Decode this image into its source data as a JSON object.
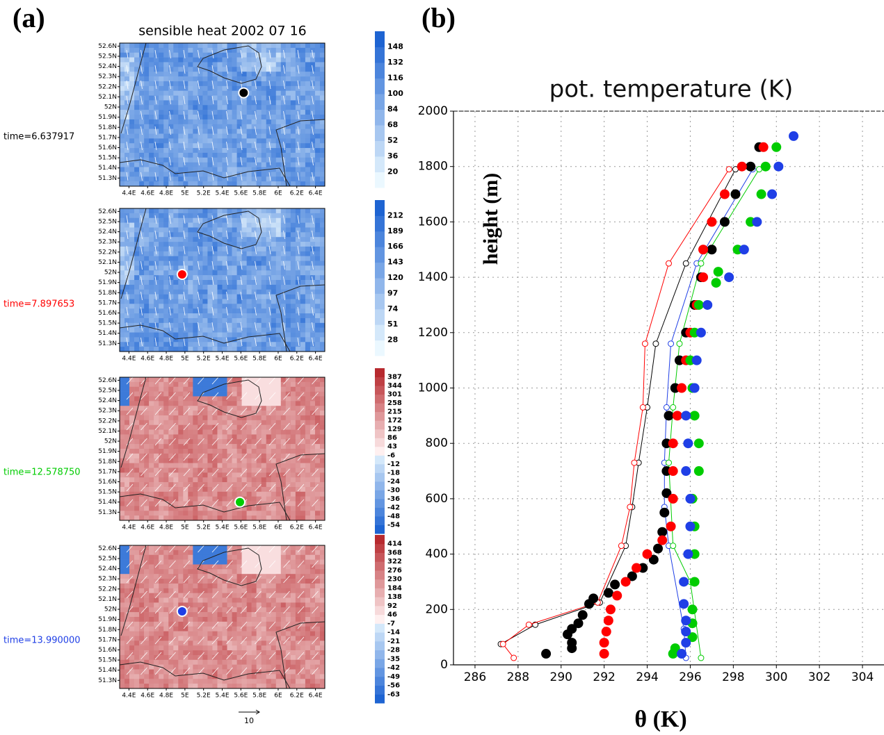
{
  "maps": {
    "panel_label": "(a)",
    "title": "sensible heat 2002 07   16",
    "lat_ticks": [
      {
        "value": 52.6,
        "label": "52.6N"
      },
      {
        "value": 52.5,
        "label": "52.5N"
      },
      {
        "value": 52.4,
        "label": "52.4N"
      },
      {
        "value": 52.3,
        "label": "52.3N"
      },
      {
        "value": 52.2,
        "label": "52.2N"
      },
      {
        "value": 52.1,
        "label": "52.1N"
      },
      {
        "value": 52.0,
        "label": "52N"
      },
      {
        "value": 51.9,
        "label": "51.9N"
      },
      {
        "value": 51.8,
        "label": "51.8N"
      },
      {
        "value": 51.7,
        "label": "51.7N"
      },
      {
        "value": 51.6,
        "label": "51.6N"
      },
      {
        "value": 51.5,
        "label": "51.5N"
      },
      {
        "value": 51.4,
        "label": "51.4N"
      },
      {
        "value": 51.3,
        "label": "51.3N"
      }
    ],
    "lon_ticks": [
      {
        "value": 4.4,
        "label": "4.4E"
      },
      {
        "value": 4.6,
        "label": "4.6E"
      },
      {
        "value": 4.8,
        "label": "4.8E"
      },
      {
        "value": 5.0,
        "label": "5E"
      },
      {
        "value": 5.2,
        "label": "5.2E"
      },
      {
        "value": 5.4,
        "label": "5.4E"
      },
      {
        "value": 5.6,
        "label": "5.6E"
      },
      {
        "value": 5.8,
        "label": "5.8E"
      },
      {
        "value": 6.0,
        "label": "6E"
      },
      {
        "value": 6.2,
        "label": "6.2E"
      },
      {
        "value": 6.4,
        "label": "6.4E"
      }
    ],
    "vector_scale": "10",
    "panels": [
      {
        "time_label": "time=6.637917",
        "color": "#000000",
        "marker": [
          5.63,
          52.14
        ],
        "colorbar_ticks": [
          20,
          36,
          52,
          68,
          84,
          100,
          116,
          132,
          148
        ]
      },
      {
        "time_label": "time=7.897653",
        "color": "#ff0000",
        "marker": [
          4.97,
          51.98
        ],
        "colorbar_ticks": [
          28,
          51,
          74,
          97,
          120,
          143,
          166,
          189,
          212
        ]
      },
      {
        "time_label": "time=12.578750",
        "color": "#00cc00",
        "marker": [
          5.59,
          51.4
        ],
        "colorbar_ticks": [
          -54,
          -48,
          -42,
          -36,
          -30,
          -24,
          -18,
          -12,
          -6,
          43,
          86,
          129,
          172,
          215,
          258,
          301,
          344,
          387
        ]
      },
      {
        "time_label": "time=13.990000",
        "color": "#1f3fe6",
        "marker": [
          4.97,
          51.98
        ],
        "colorbar_ticks": [
          -63,
          -56,
          -49,
          -42,
          -35,
          -28,
          -21,
          -14,
          -7,
          46,
          92,
          138,
          184,
          230,
          276,
          322,
          368,
          414
        ]
      }
    ]
  },
  "chart_data": {
    "type": "scatter",
    "panel_label": "(b)",
    "title": "pot. temperature (K)",
    "x_label": "θ (K)",
    "y_label": "height (m)",
    "xlim": [
      285,
      305
    ],
    "ylim": [
      0,
      2000
    ],
    "xticks": [
      286,
      288,
      290,
      292,
      294,
      296,
      298,
      300,
      302,
      304
    ],
    "yticks": [
      0,
      200,
      400,
      600,
      800,
      1000,
      1200,
      1400,
      1600,
      1800,
      2000
    ],
    "grid": true,
    "series": [
      {
        "color": "#000000",
        "mode": "markers",
        "x": [
          289.3,
          290.5,
          290.5,
          290.3,
          290.5,
          290.8,
          291,
          291.3,
          291.5,
          292.2,
          292.5,
          293.3,
          293.8,
          294.3,
          294.5,
          294.7,
          294.8,
          294.9,
          294.9,
          294.9,
          295,
          295.3,
          295.5,
          295.8,
          296.2,
          296.5,
          297,
          297.6,
          298.1,
          298.8,
          299.2
        ],
        "values": [
          40,
          60,
          80,
          110,
          130,
          150,
          180,
          220,
          240,
          260,
          290,
          320,
          350,
          380,
          420,
          480,
          550,
          620,
          700,
          800,
          900,
          1000,
          1100,
          1200,
          1300,
          1400,
          1500,
          1600,
          1700,
          1800,
          1870
        ]
      },
      {
        "color": "#ff0000",
        "mode": "markers",
        "x": [
          292,
          292,
          292.1,
          292.2,
          292.3,
          292.6,
          293,
          293.5,
          294,
          294.7,
          295.1,
          295.2,
          295.2,
          295.2,
          295.4,
          295.6,
          295.8,
          296,
          296.3,
          296.6,
          296.6,
          297,
          297.6,
          298.4,
          299.4
        ],
        "values": [
          40,
          80,
          120,
          160,
          200,
          250,
          300,
          350,
          400,
          450,
          500,
          600,
          700,
          800,
          900,
          1000,
          1100,
          1200,
          1300,
          1400,
          1500,
          1600,
          1700,
          1800,
          1870
        ]
      },
      {
        "color": "#00cc00",
        "mode": "markers",
        "x": [
          295.2,
          295.3,
          296.1,
          296.1,
          296.1,
          296.2,
          296.2,
          296.2,
          296.1,
          296.4,
          296.4,
          296.2,
          296.1,
          296,
          296.2,
          296.4,
          297.2,
          297.3,
          298.2,
          298.8,
          299.3,
          299.5,
          300
        ],
        "values": [
          40,
          60,
          100,
          150,
          200,
          300,
          400,
          500,
          600,
          700,
          800,
          900,
          1000,
          1100,
          1200,
          1300,
          1380,
          1420,
          1500,
          1600,
          1700,
          1800,
          1870
        ]
      },
      {
        "color": "#1f3fe6",
        "mode": "markers",
        "x": [
          295.6,
          295.8,
          295.8,
          295.8,
          295.7,
          295.7,
          295.9,
          296,
          296,
          295.8,
          295.9,
          295.8,
          296.2,
          296.3,
          296.5,
          296.8,
          297.8,
          298.5,
          299.1,
          299.8,
          300.1,
          300.8
        ],
        "values": [
          40,
          80,
          120,
          160,
          220,
          300,
          400,
          500,
          600,
          700,
          800,
          900,
          1000,
          1100,
          1200,
          1300,
          1400,
          1500,
          1600,
          1700,
          1800,
          1910
        ]
      },
      {
        "color": "#000000",
        "mode": "lines+markers",
        "x": [
          287.2,
          288.8,
          291.8,
          293,
          293.3,
          293.6,
          294,
          294.4,
          295.8,
          298.1
        ],
        "values": [
          75,
          145,
          225,
          430,
          570,
          730,
          930,
          1160,
          1450,
          1790
        ]
      },
      {
        "color": "#ff0000",
        "mode": "lines+markers",
        "x": [
          287.8,
          287.3,
          288.5,
          291.7,
          292.8,
          293.2,
          293.4,
          293.8,
          293.9,
          295,
          297.8
        ],
        "values": [
          25,
          75,
          145,
          225,
          430,
          570,
          730,
          930,
          1160,
          1450,
          1790
        ]
      },
      {
        "color": "#1f3fe6",
        "mode": "lines+markers",
        "x": [
          295.8,
          295.7,
          295,
          294.8,
          294.8,
          294.9,
          295.1,
          296.3,
          298.9
        ],
        "values": [
          25,
          130,
          430,
          570,
          730,
          930,
          1160,
          1450,
          1790
        ]
      },
      {
        "color": "#00cc00",
        "mode": "lines+markers",
        "x": [
          296.5,
          296,
          295.2,
          295,
          295.2,
          295.5,
          296.5,
          299.2
        ],
        "values": [
          25,
          300,
          430,
          730,
          930,
          1160,
          1450,
          1790
        ]
      }
    ]
  }
}
